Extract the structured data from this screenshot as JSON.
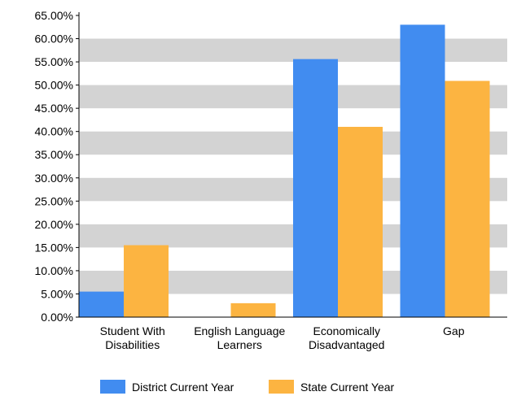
{
  "chart_data": {
    "type": "bar",
    "categories": [
      [
        "Student With",
        "Disabilities"
      ],
      [
        "English Language",
        "Learners"
      ],
      [
        "Economically",
        "Disadvantaged"
      ],
      [
        "Gap"
      ]
    ],
    "series": [
      {
        "name": "District Current Year",
        "color": "#418CF0",
        "values": [
          5.5,
          0,
          55.6,
          63.0
        ]
      },
      {
        "name": "State Current Year",
        "color": "#FCB441",
        "values": [
          15.5,
          3.0,
          41.0,
          50.9
        ]
      }
    ],
    "yticks": [
      "0.00%",
      "5.00%",
      "10.00%",
      "15.00%",
      "20.00%",
      "25.00%",
      "30.00%",
      "35.00%",
      "40.00%",
      "45.00%",
      "50.00%",
      "55.00%",
      "60.00%",
      "65.00%"
    ],
    "ylim": [
      0,
      65
    ],
    "ystep": 5,
    "grid": "alternating-bands",
    "band_color": "#D3D3D3",
    "legend_position": "bottom",
    "title": "",
    "xlabel": "",
    "ylabel": ""
  }
}
